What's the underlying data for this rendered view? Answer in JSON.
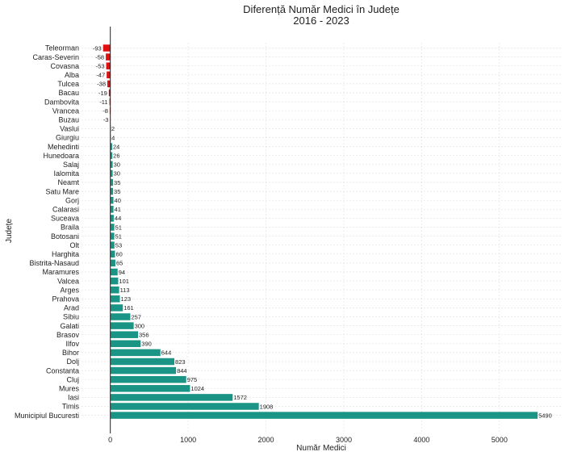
{
  "chart_data": {
    "type": "bar",
    "orientation": "horizontal",
    "title": "Diferență Număr Medici în Județe",
    "subtitle": "2016 - 2023",
    "xlabel": "Număr Medici",
    "ylabel": "Județe",
    "xlim": [
      -370,
      5790
    ],
    "xticks": [
      0,
      1000,
      2000,
      3000,
      4000,
      5000
    ],
    "grid": true,
    "colors": {
      "negative": "#e01010",
      "positive": "#1a9485",
      "zero_line": "#222222"
    },
    "categories": [
      "Teleorman",
      "Caras-Severin",
      "Covasna",
      "Alba",
      "Tulcea",
      "Bacau",
      "Dambovita",
      "Vrancea",
      "Buzau",
      "Vaslui",
      "Giurgiu",
      "Mehedinti",
      "Hunedoara",
      "Salaj",
      "Ialomita",
      "Neamt",
      "Satu Mare",
      "Gorj",
      "Calarasi",
      "Suceava",
      "Braila",
      "Botosani",
      "Olt",
      "Harghita",
      "Bistrita-Nasaud",
      "Maramures",
      "Valcea",
      "Arges",
      "Prahova",
      "Arad",
      "Sibiu",
      "Galati",
      "Brasov",
      "Ilfov",
      "Bihor",
      "Dolj",
      "Constanta",
      "Cluj",
      "Mures",
      "Iasi",
      "Timis",
      "Municipiul Bucuresti"
    ],
    "values": [
      -93,
      -58,
      -53,
      -47,
      -38,
      -19,
      -11,
      -8,
      -3,
      2,
      4,
      24,
      26,
      30,
      30,
      35,
      35,
      40,
      41,
      44,
      51,
      51,
      53,
      60,
      65,
      94,
      101,
      113,
      123,
      161,
      257,
      300,
      356,
      390,
      644,
      823,
      844,
      975,
      1024,
      1572,
      1908,
      5490
    ]
  }
}
